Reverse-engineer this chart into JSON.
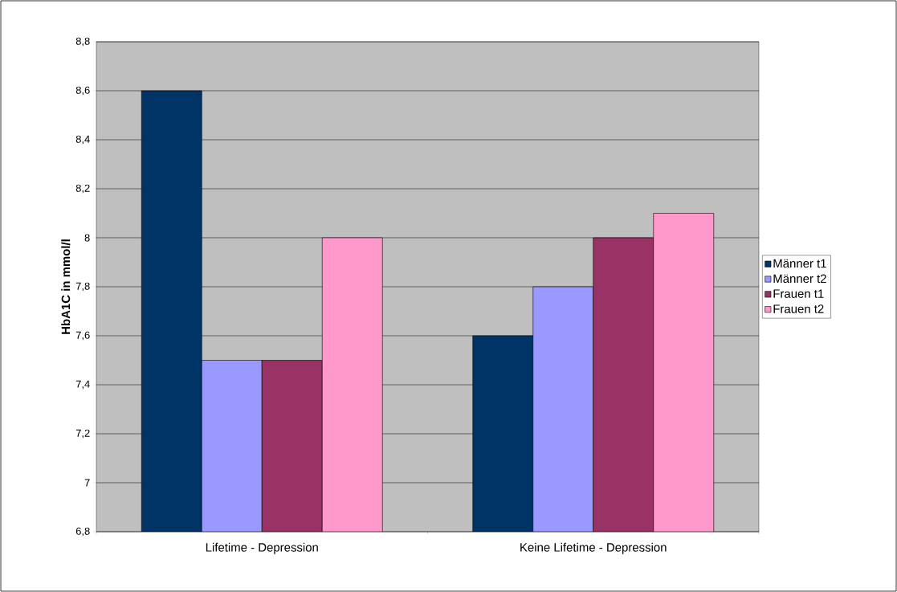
{
  "chart_data": {
    "type": "bar",
    "ylabel": "HbA1C in mmol/l",
    "categories": [
      "Lifetime - Depression",
      "Keine Lifetime - Depression"
    ],
    "series": [
      {
        "name": "Männer t1",
        "color": "#003366",
        "values": [
          8.6,
          7.6
        ]
      },
      {
        "name": "Männer t2",
        "color": "#9999ff",
        "values": [
          7.5,
          7.8
        ]
      },
      {
        "name": "Frauen t1",
        "color": "#993366",
        "values": [
          7.5,
          8.0
        ]
      },
      {
        "name": "Frauen t2",
        "color": "#ff99cc",
        "values": [
          8.0,
          8.1
        ]
      }
    ],
    "ylim": [
      6.8,
      8.8
    ],
    "yticks": [
      {
        "value": 6.8,
        "label": "6,8"
      },
      7,
      {
        "value": 7.2,
        "label": "7,2"
      },
      {
        "value": 7.4,
        "label": "7,4"
      },
      {
        "value": 7.6,
        "label": "7,6"
      },
      {
        "value": 7.8,
        "label": "7,8"
      },
      8,
      {
        "value": 8.2,
        "label": "8,2"
      },
      {
        "value": 8.4,
        "label": "8,4"
      },
      {
        "value": 8.6,
        "label": "8,6"
      },
      {
        "value": 8.8,
        "label": "8,8"
      }
    ],
    "grid": "y",
    "legend": "right"
  }
}
